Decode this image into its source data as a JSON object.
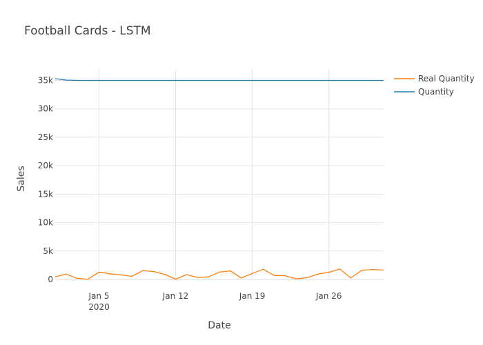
{
  "chart_data": {
    "type": "line",
    "title": "Football Cards - LSTM",
    "xlabel": "Date",
    "ylabel": "Sales",
    "x_start": "2020-01-01",
    "x_end": "2020-01-31",
    "x_ticks": [
      {
        "date": "2020-01-05",
        "label": "Jan 5",
        "sublabel": "2020"
      },
      {
        "date": "2020-01-12",
        "label": "Jan 12",
        "sublabel": ""
      },
      {
        "date": "2020-01-19",
        "label": "Jan 19",
        "sublabel": ""
      },
      {
        "date": "2020-01-26",
        "label": "Jan 26",
        "sublabel": ""
      }
    ],
    "ylim": [
      0,
      37000
    ],
    "y_ticks": [
      {
        "value": 0,
        "label": "0"
      },
      {
        "value": 5000,
        "label": "5k"
      },
      {
        "value": 10000,
        "label": "10k"
      },
      {
        "value": 15000,
        "label": "15k"
      },
      {
        "value": 20000,
        "label": "20k"
      },
      {
        "value": 25000,
        "label": "25k"
      },
      {
        "value": 30000,
        "label": "30k"
      },
      {
        "value": 35000,
        "label": "35k"
      }
    ],
    "grid": true,
    "legend": "top-right",
    "dates": [
      "2020-01-01",
      "2020-01-02",
      "2020-01-03",
      "2020-01-04",
      "2020-01-05",
      "2020-01-06",
      "2020-01-07",
      "2020-01-08",
      "2020-01-09",
      "2020-01-10",
      "2020-01-11",
      "2020-01-12",
      "2020-01-13",
      "2020-01-14",
      "2020-01-15",
      "2020-01-16",
      "2020-01-17",
      "2020-01-18",
      "2020-01-19",
      "2020-01-20",
      "2020-01-21",
      "2020-01-22",
      "2020-01-23",
      "2020-01-24",
      "2020-01-25",
      "2020-01-26",
      "2020-01-27",
      "2020-01-28",
      "2020-01-29",
      "2020-01-30",
      "2020-01-31"
    ],
    "series": [
      {
        "name": "Real Quantity",
        "color": "#ff7f0e",
        "values": [
          450,
          950,
          200,
          50,
          1300,
          1000,
          800,
          550,
          1550,
          1400,
          900,
          50,
          850,
          350,
          450,
          1300,
          1500,
          250,
          1050,
          1800,
          700,
          650,
          100,
          300,
          950,
          1250,
          1850,
          250,
          1600,
          1750,
          1650
        ]
      },
      {
        "name": "Quantity",
        "color": "#1f77b4",
        "values": [
          35300,
          35050,
          35000,
          35000,
          35000,
          35000,
          35000,
          35000,
          35000,
          35000,
          35000,
          35000,
          35000,
          35000,
          35000,
          35000,
          35000,
          35000,
          35000,
          35000,
          35000,
          35000,
          35000,
          35000,
          35000,
          35000,
          35000,
          35000,
          35000,
          35000,
          35000
        ]
      }
    ]
  }
}
